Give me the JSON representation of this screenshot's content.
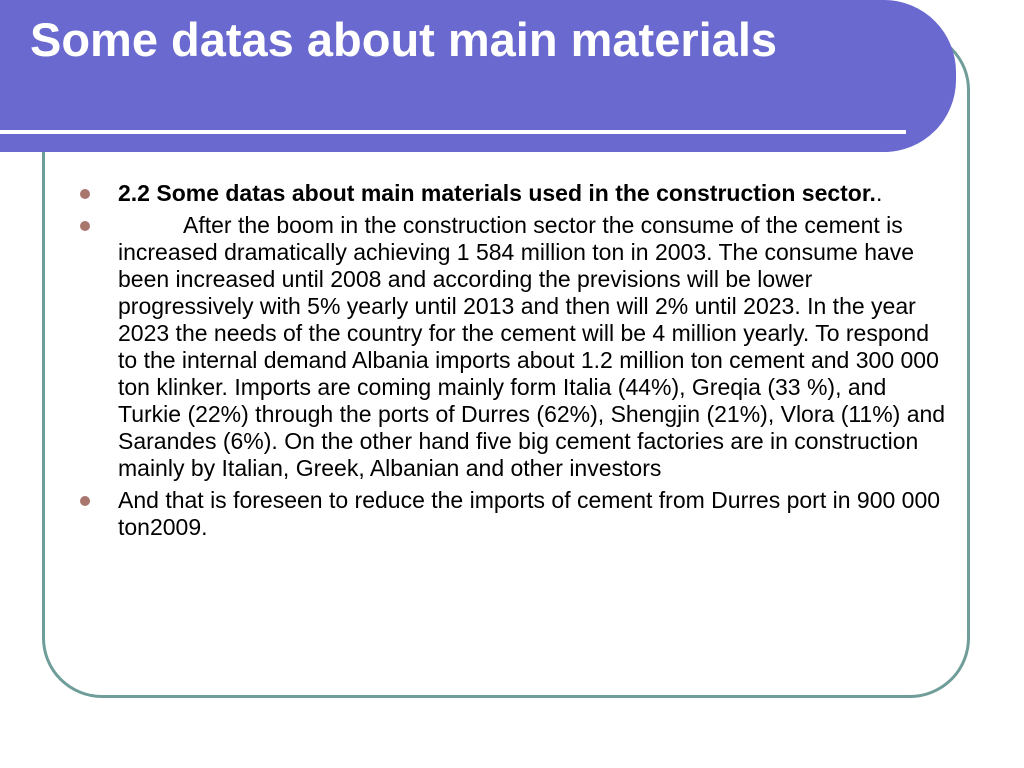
{
  "slide": {
    "title": "Some datas about main materials",
    "bullets": [
      {
        "bold_text": "2.2 Some datas about main materials used in the construction sector.",
        "suffix": "."
      },
      {
        "text": "After the boom in the construction sector  the consume of the cement is increased dramatically achieving 1 584 million ton in 2003. The consume have been increased until 2008 and according the previsions will be lower progressively with 5% yearly until 2013 and then will 2% until 2023. In the year 2023 the needs of the country for the cement will be 4 million yearly. To respond to the internal demand Albania imports about 1.2 million ton cement and  300 000 ton klinker. Imports are coming mainly form Italia (44%), Greqia (33 %), and Turkie (22%) through the ports of  Durres (62%),  Shengjin (21%), Vlora (11%) and Sarandes (6%). On the other hand five big cement factories are in construction mainly by Italian, Greek, Albanian and other investors"
      },
      {
        "text": "And that is foreseen to reduce the imports of cement from Durres port  in 900 000 ton2009."
      }
    ]
  },
  "colors": {
    "title_band": "#6a69cf",
    "frame_border": "#6f9d9a",
    "bullet_dot": "#a9766e",
    "title_text": "#ffffff",
    "body_text": "#000000"
  }
}
